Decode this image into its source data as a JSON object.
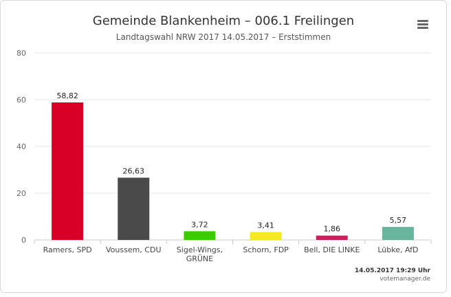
{
  "chart_data": {
    "type": "bar",
    "title": "Gemeinde Blankenheim – 006.1 Freilingen",
    "subtitle": "Landtagswahl NRW 2017 14.05.2017 – Erststimmen",
    "categories": [
      [
        "Ramers, SPD"
      ],
      [
        "Voussem, CDU"
      ],
      [
        "Sigel-Wings,",
        "GRÜNE"
      ],
      [
        "Schorn, FDP"
      ],
      [
        "Bell, DIE LINKE"
      ],
      [
        "Lübke, AfD"
      ]
    ],
    "values": [
      58.82,
      26.63,
      3.72,
      3.41,
      1.86,
      5.57
    ],
    "value_labels": [
      "58,82",
      "26,63",
      "3,72",
      "3,41",
      "1,86",
      "5,57"
    ],
    "colors": [
      "#d90025",
      "#4a4a4a",
      "#3dcb00",
      "#f5e923",
      "#cc1f5e",
      "#68b49c"
    ],
    "yticks": [
      "0",
      "20",
      "40",
      "60",
      "80"
    ],
    "ylim": [
      0,
      80
    ],
    "grid": true,
    "legend": "none"
  },
  "footer": {
    "date": "14.05.2017 19:29 Uhr",
    "credit": "votemanager.de"
  },
  "menu_icon": "hamburger-menu-icon"
}
